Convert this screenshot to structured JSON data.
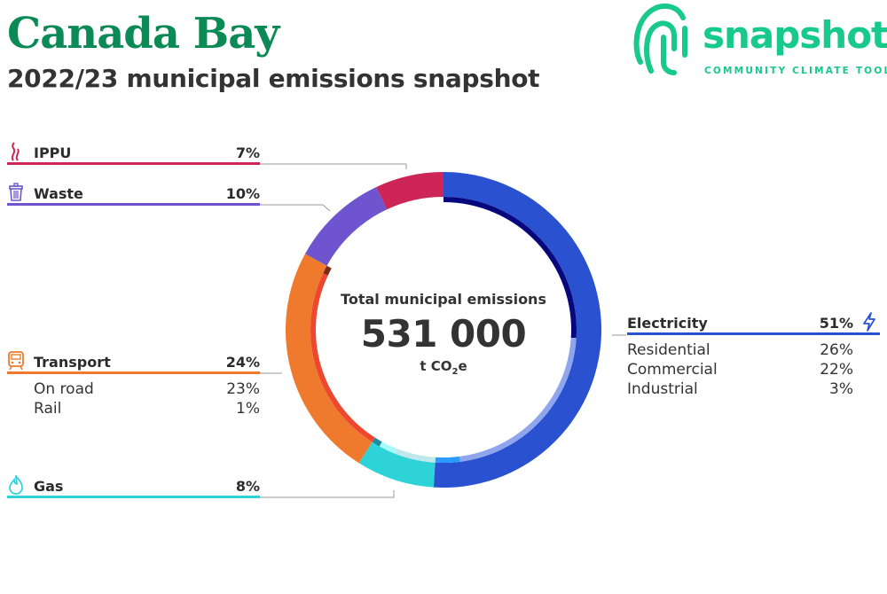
{
  "header": {
    "title": "Canada Bay",
    "subtitle": "2022/23 municipal emissions snapshot"
  },
  "logo": {
    "name": "snapshot",
    "tagline": "COMMUNITY CLIMATE TOOL",
    "color": "#17c98a"
  },
  "center": {
    "title": "Total municipal emissions",
    "value": "531 000",
    "unit_prefix": "t CO",
    "unit_sub": "2",
    "unit_suffix": "e"
  },
  "categories": {
    "ippu": {
      "label": "IPPU",
      "pct": "7%",
      "color": "#cc2556",
      "icon": "smoke-icon"
    },
    "waste": {
      "label": "Waste",
      "pct": "10%",
      "color": "#6e55cf",
      "icon": "bin-icon"
    },
    "transport": {
      "label": "Transport",
      "pct": "24%",
      "color": "#ef7a2d",
      "icon": "train-icon",
      "subs": [
        {
          "label": "On road",
          "pct": "23%"
        },
        {
          "label": "Rail",
          "pct": "1%"
        }
      ]
    },
    "gas": {
      "label": "Gas",
      "pct": "8%",
      "color": "#2ed3d8",
      "icon": "flame-icon"
    },
    "electricity": {
      "label": "Electricity",
      "pct": "51%",
      "color": "#2a52d0",
      "icon": "lightning-icon",
      "subs": [
        {
          "label": "Residential",
          "pct": "26%"
        },
        {
          "label": "Commercial",
          "pct": "22%"
        },
        {
          "label": "Industrial",
          "pct": "3%"
        }
      ]
    }
  },
  "chart_data": {
    "type": "pie",
    "variant": "donut",
    "total": 531000,
    "series": [
      {
        "name": "Electricity",
        "value": 51,
        "color": "#2a52d0",
        "subs": [
          {
            "name": "Residential",
            "value": 26,
            "color": "#07087e"
          },
          {
            "name": "Commercial",
            "value": 22,
            "color": "#8fa6ee"
          },
          {
            "name": "Industrial",
            "value": 3,
            "color": "#2b9bff"
          }
        ]
      },
      {
        "name": "Gas",
        "value": 8,
        "color": "#2ed3d8",
        "subs": [
          {
            "name": "Residential",
            "value": 5,
            "color": "#bfe8ea"
          },
          {
            "name": "Commercial",
            "value": 2,
            "color": "#a7fbff"
          },
          {
            "name": "Industrial",
            "value": 1,
            "color": "#1e8c9c"
          }
        ]
      },
      {
        "name": "Transport",
        "value": 24,
        "color": "#ef7a2d",
        "subs": [
          {
            "name": "On road",
            "value": 23,
            "color": "#ee4730"
          },
          {
            "name": "Rail",
            "value": 1,
            "color": "#7a2b1a"
          }
        ]
      },
      {
        "name": "Waste",
        "value": 10,
        "color": "#6e55cf"
      },
      {
        "name": "IPPU",
        "value": 7,
        "color": "#cc2556"
      }
    ]
  }
}
